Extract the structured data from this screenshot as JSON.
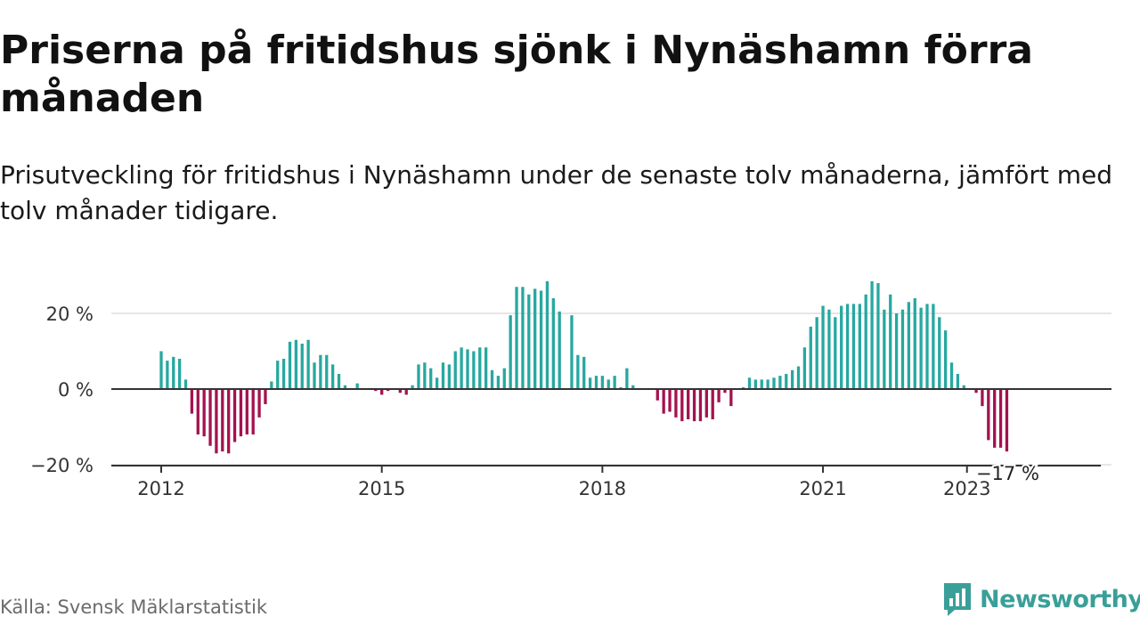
{
  "header": {
    "title": "Priserna på fritidshus sjönk i Nynäshamn förra månaden",
    "subtitle": "Prisutveckling för fritidshus i Nynäshamn under de senaste tolv månaderna, jämfört med tolv månader tidigare."
  },
  "footer": {
    "source": "Källa: Svensk Mäklarstatistik",
    "brand": "Newsworthy"
  },
  "colors": {
    "positive": "#27a8a0",
    "negative": "#a3134f",
    "grid": "#dddddd",
    "axis": "#333333",
    "brand": "#3a9f99"
  },
  "chart_data": {
    "type": "bar",
    "title": "",
    "xlabel": "",
    "ylabel": "",
    "ylim": [
      -20,
      30
    ],
    "yticks": [
      {
        "value": 20,
        "label": "20 %"
      },
      {
        "value": 0,
        "label": "0 %"
      },
      {
        "value": -20,
        "label": "−20 %"
      }
    ],
    "xticks": [
      "2012",
      "2015",
      "2018",
      "2021",
      "2023"
    ],
    "annotation": "−17 %",
    "grid": true,
    "legend": "none",
    "series": [
      {
        "values": [
          10,
          7.5,
          8.5,
          8,
          2.5,
          -6.5,
          -12,
          -12.5,
          -15,
          -17,
          -16.5,
          -17,
          -14,
          -12.5,
          -12,
          -12,
          -7.5,
          -4,
          2,
          7.5,
          8,
          12.5,
          13,
          12,
          13,
          7,
          9,
          9,
          6.5,
          4,
          1,
          0,
          1.5,
          0,
          0,
          -0.5,
          -1.5,
          -0.5,
          0,
          -1,
          -1.5,
          1,
          6.5,
          7,
          5.5,
          3,
          7,
          6.5,
          10,
          11,
          10.5,
          10,
          11,
          11,
          5,
          3.5,
          5.5,
          19.5,
          27,
          27,
          25,
          26.5,
          26,
          28.5,
          24,
          20.5,
          0,
          19.5,
          9,
          8.5,
          3,
          3.5,
          3.5,
          2.5,
          3.5,
          0.5,
          5.5,
          1,
          0,
          0,
          0,
          -3,
          -6.5,
          -6,
          -7.5,
          -8.5,
          -8,
          -8.5,
          -8.5,
          -7.5,
          -8,
          -3.5,
          -1,
          -4.5,
          0,
          0.5,
          3,
          2.5,
          2.5,
          2.5,
          3,
          3.5,
          4,
          5,
          6,
          11,
          16.5,
          19,
          22,
          21,
          19,
          22,
          22.5,
          22.5,
          22.5,
          25,
          28.5,
          28,
          21,
          25,
          20,
          21,
          23,
          24,
          21.5,
          22.5,
          22.5,
          19,
          15.5,
          7,
          4,
          1,
          0,
          -1,
          -4.5,
          -13.5,
          -15.5,
          -15.5,
          -16.5
        ]
      }
    ]
  }
}
